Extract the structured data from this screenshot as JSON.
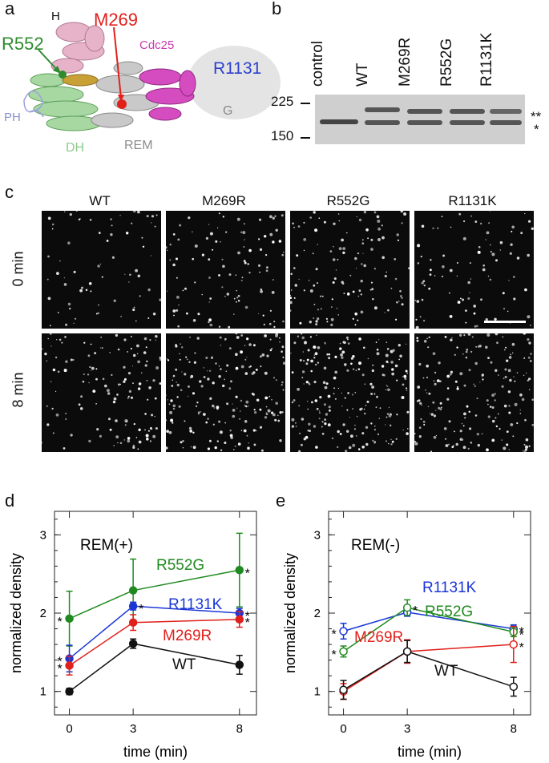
{
  "panels": {
    "a": "a",
    "b": "b",
    "c": "c",
    "d": "d",
    "e": "e"
  },
  "structure": {
    "labels": {
      "H": "H",
      "M269": "M269",
      "R552": "R552",
      "Cdc25": "Cdc25",
      "R1131": "R1131",
      "G": "G",
      "PH": "PH",
      "DH": "DH",
      "REM": "REM"
    },
    "colors": {
      "H": "#d9a7bd",
      "M269": "#e0201b",
      "R552": "#2e8b2e",
      "Cdc25": "#c83cb4",
      "R1131": "#2b3fd0",
      "G": "#888888",
      "PH": "#8a8fd0",
      "DH": "#8fc98f",
      "REM": "#8c8c8c"
    }
  },
  "blot": {
    "lanes": [
      "control",
      "WT",
      "M269R",
      "R552G",
      "R1131K"
    ],
    "markers": [
      "225",
      "150"
    ],
    "bands": [
      "**",
      "*"
    ]
  },
  "microscopy": {
    "columns": [
      "WT",
      "M269R",
      "R552G",
      "R1131K"
    ],
    "rows": [
      "0 min",
      "8 min"
    ]
  },
  "chart_data": [
    {
      "panel": "d",
      "type": "line",
      "title": "REM(+)",
      "xlabel": "time (min)",
      "ylabel": "normalized density",
      "x": [
        0,
        3,
        8
      ],
      "xticks": [
        "0",
        "3",
        "8"
      ],
      "yticks": [
        "1",
        "2",
        "3"
      ],
      "ylim": [
        0.7,
        3.3
      ],
      "marker": "filled",
      "series": [
        {
          "name": "R552G",
          "color": "#1f8a1f",
          "values": [
            1.93,
            2.29,
            2.55
          ],
          "err": [
            0.35,
            0.4,
            0.47
          ],
          "sig": [
            "*",
            "",
            "*"
          ]
        },
        {
          "name": "R1131K",
          "color": "#1a36d6",
          "values": [
            1.42,
            2.09,
            2.0
          ],
          "err": [
            0.17,
            0.05,
            0.06
          ],
          "sig": [
            "*",
            "*",
            "*"
          ]
        },
        {
          "name": "M269R",
          "color": "#e0201b",
          "values": [
            1.33,
            1.88,
            1.92
          ],
          "err": [
            0.12,
            0.1,
            0.1
          ],
          "sig": [
            "*",
            "",
            "*"
          ]
        },
        {
          "name": "WT",
          "color": "#111111",
          "values": [
            1.0,
            1.61,
            1.34
          ],
          "err": [
            0.04,
            0.06,
            0.12
          ],
          "sig": [
            "",
            "",
            ""
          ]
        }
      ]
    },
    {
      "panel": "e",
      "type": "line",
      "title": "REM(-)",
      "xlabel": "time (min)",
      "ylabel": "normalized density",
      "x": [
        0,
        3,
        8
      ],
      "xticks": [
        "0",
        "3",
        "8"
      ],
      "yticks": [
        "1",
        "2",
        "3"
      ],
      "ylim": [
        0.7,
        3.3
      ],
      "marker": "open",
      "series": [
        {
          "name": "R1131K",
          "color": "#1a36d6",
          "values": [
            1.77,
            2.01,
            1.8
          ],
          "err": [
            0.1,
            0.05,
            0.05
          ],
          "sig": [
            "*",
            "",
            "*"
          ]
        },
        {
          "name": "R552G",
          "color": "#1f8a1f",
          "values": [
            1.51,
            2.07,
            1.76
          ],
          "err": [
            0.07,
            0.1,
            0.06
          ],
          "sig": [
            "*",
            "*",
            "*"
          ]
        },
        {
          "name": "M269R",
          "color": "#e0201b",
          "values": [
            1.0,
            1.51,
            1.6
          ],
          "err": [
            0.1,
            0.15,
            0.23
          ],
          "sig": [
            "",
            "",
            "*"
          ]
        },
        {
          "name": "WT",
          "color": "#111111",
          "values": [
            1.02,
            1.51,
            1.06
          ],
          "err": [
            0.12,
            0.14,
            0.12
          ],
          "sig": [
            "",
            "",
            ""
          ]
        }
      ]
    }
  ]
}
